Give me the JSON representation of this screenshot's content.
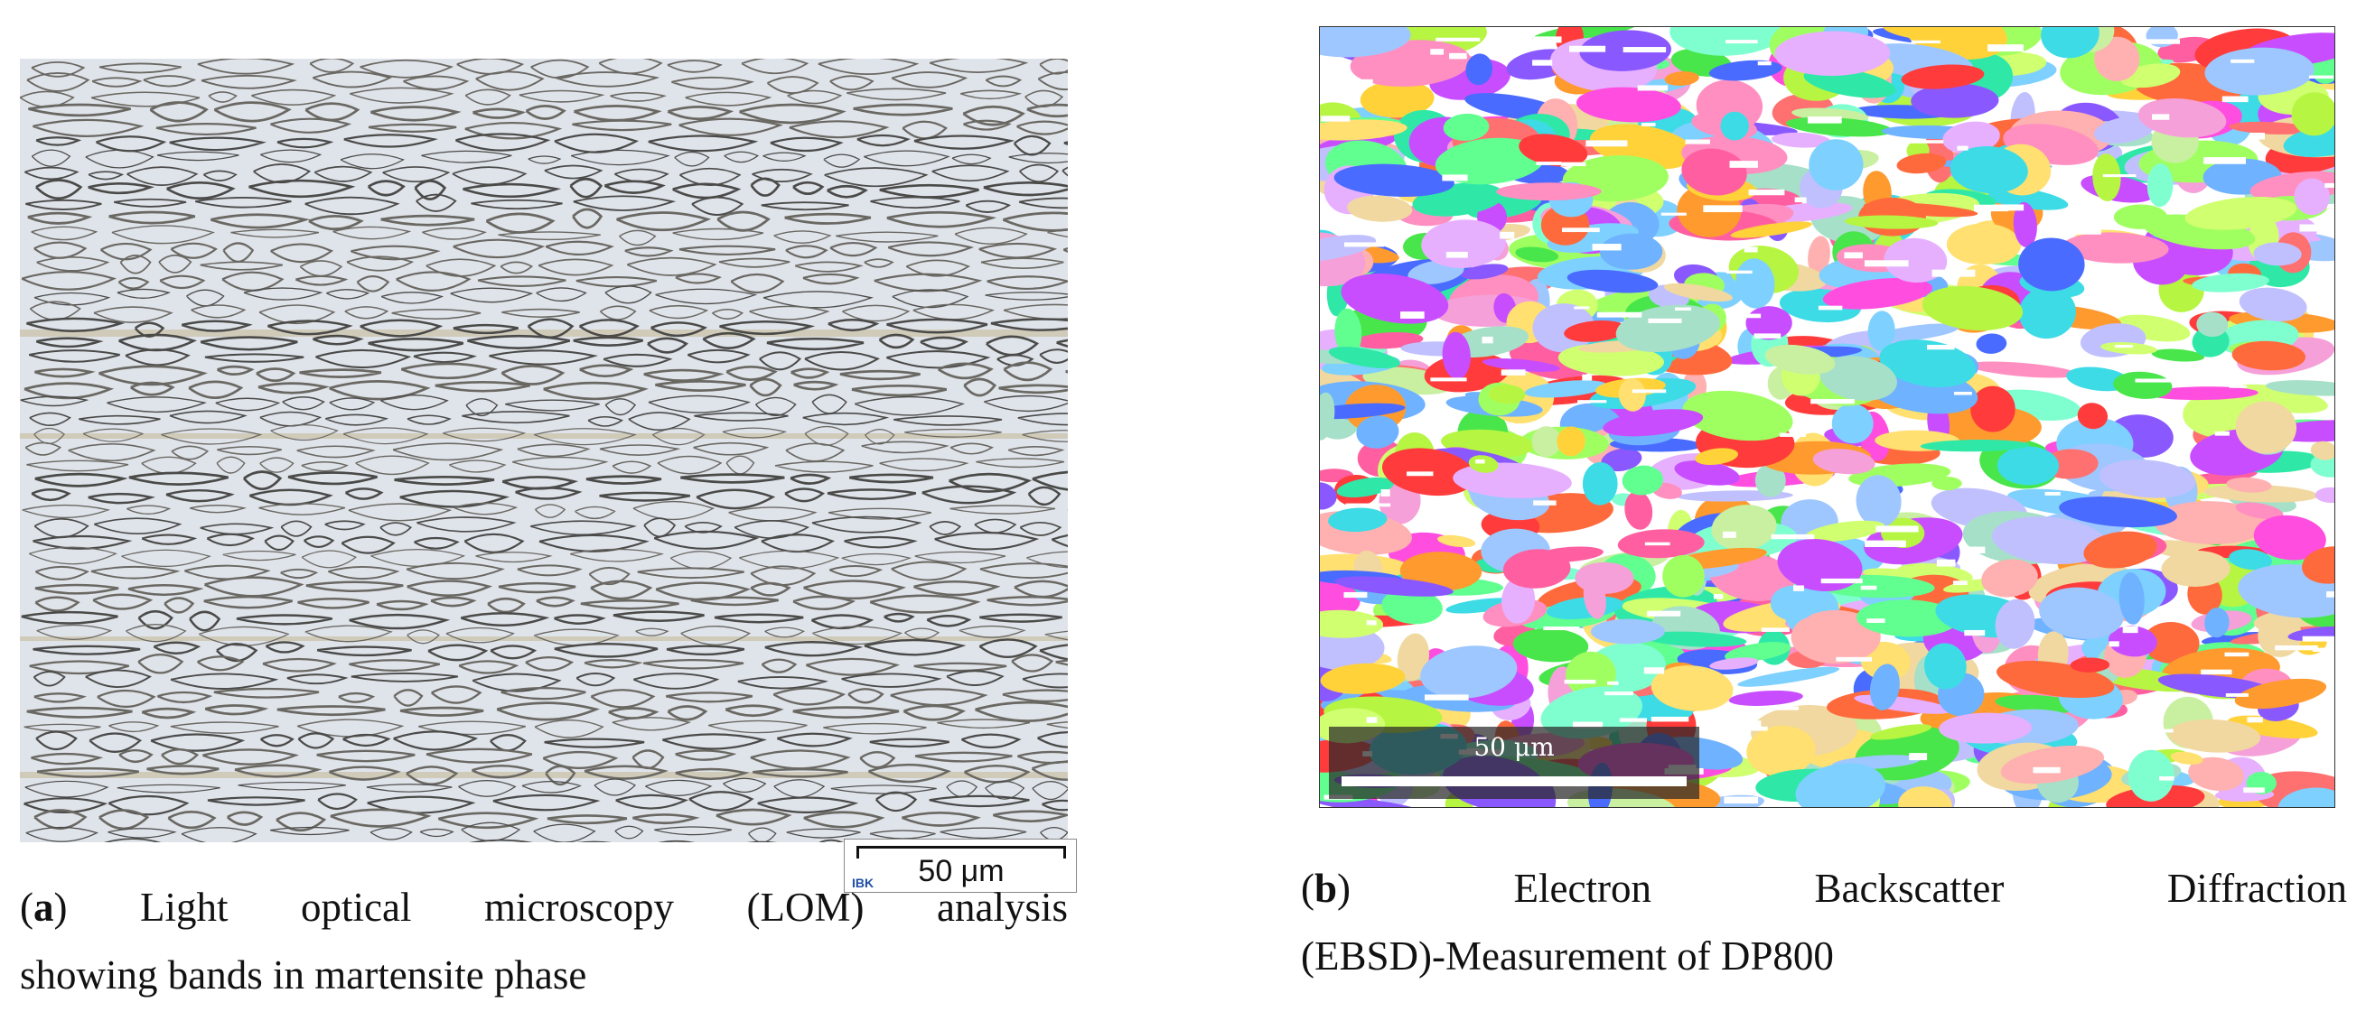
{
  "panel_a": {
    "scalebar_label": "50 μm",
    "logo_text": "IBK",
    "caption_letter": "a",
    "caption_text_line1": "Light optical microscopy (LOM) analysis",
    "caption_text_line2": "showing bands in martensite phase"
  },
  "panel_b": {
    "scalebar_label": "50 μm",
    "caption_letter": "b",
    "caption_text_line1": "Electron Backscatter Diffraction",
    "caption_text_line2": "(EBSD)-Measurement of DP800"
  }
}
